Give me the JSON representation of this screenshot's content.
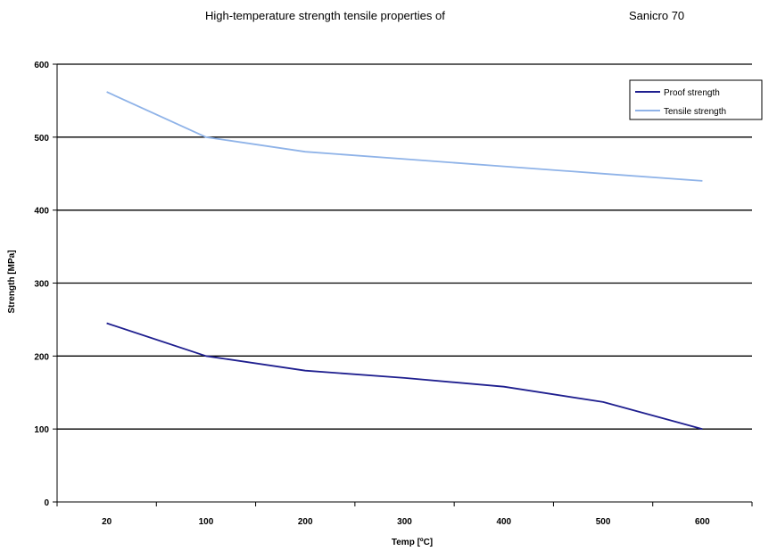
{
  "chart_data": {
    "type": "line",
    "title": "High-temperature strength tensile properties of",
    "title_material": "Sanicro 70",
    "xlabel": "Temp [ºC]",
    "ylabel": "Strength [MPa]",
    "categories": [
      "20",
      "100",
      "200",
      "300",
      "400",
      "500",
      "600"
    ],
    "ylim": [
      0,
      600
    ],
    "yticks": [
      0,
      100,
      200,
      300,
      400,
      500,
      600
    ],
    "grid": true,
    "legend_position": "top-right",
    "series": [
      {
        "name": "Proof strength",
        "color": "#1f1f8f",
        "values": [
          245,
          200,
          180,
          170,
          158,
          137,
          100
        ]
      },
      {
        "name": "Tensile strength",
        "color": "#8fb3e8",
        "values": [
          562,
          500,
          480,
          470,
          460,
          450,
          440
        ]
      }
    ]
  }
}
